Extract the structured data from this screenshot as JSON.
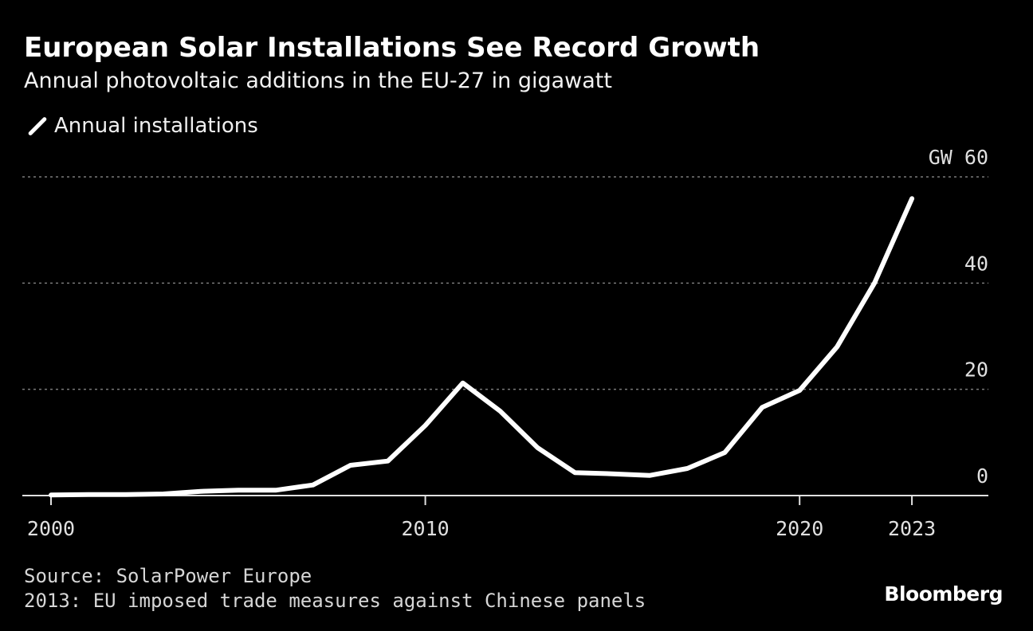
{
  "header": {
    "title": "European Solar Installations See Record Growth",
    "subtitle": "Annual photovoltaic additions in the EU-27 in gigawatt"
  },
  "legend": {
    "label": "Annual installations"
  },
  "footer": {
    "source": "Source: SolarPower Europe",
    "note": "2013: EU imposed trade measures against Chinese panels",
    "brand": "Bloomberg"
  },
  "colors": {
    "background": "#000000",
    "line": "#ffffff",
    "grid": "#7a7a7a",
    "text": "#ffffff"
  },
  "chart_data": {
    "type": "line",
    "unit": "GW",
    "ylim": [
      0,
      60
    ],
    "xlim": [
      2000,
      2024.9
    ],
    "yticks": [
      0,
      20,
      40,
      60
    ],
    "xticks": [
      2000,
      2010,
      2020,
      2023
    ],
    "grid": true,
    "legend_position": "top-left",
    "series": [
      {
        "name": "Annual installations",
        "x": [
          2000,
          2001,
          2002,
          2003,
          2004,
          2005,
          2006,
          2007,
          2008,
          2009,
          2010,
          2011,
          2012,
          2013,
          2014,
          2015,
          2016,
          2017,
          2018,
          2019,
          2020,
          2021,
          2022,
          2023
        ],
        "values": [
          0.1,
          0.2,
          0.2,
          0.3,
          0.8,
          1.0,
          1.0,
          2.0,
          5.7,
          6.5,
          13.2,
          21.2,
          15.9,
          9.0,
          4.3,
          4.1,
          3.8,
          5.1,
          8.1,
          16.6,
          19.8,
          28.0,
          40.0,
          55.9
        ]
      }
    ]
  }
}
